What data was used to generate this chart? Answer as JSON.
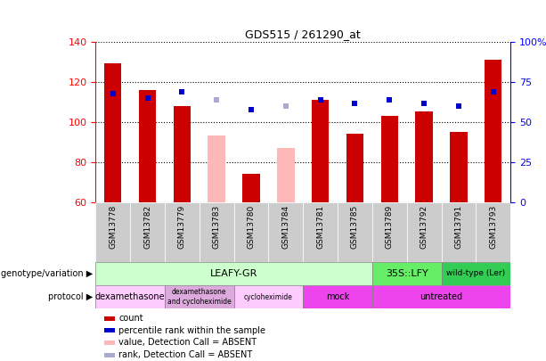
{
  "title": "GDS515 / 261290_at",
  "samples": [
    "GSM13778",
    "GSM13782",
    "GSM13779",
    "GSM13783",
    "GSM13780",
    "GSM13784",
    "GSM13781",
    "GSM13785",
    "GSM13789",
    "GSM13792",
    "GSM13791",
    "GSM13793"
  ],
  "count_values": [
    129,
    116,
    108,
    93,
    74,
    87,
    111,
    94,
    103,
    105,
    95,
    131
  ],
  "count_absent": [
    false,
    false,
    false,
    true,
    false,
    true,
    false,
    false,
    false,
    false,
    false,
    false
  ],
  "rank_values": [
    114,
    112,
    115,
    111,
    106,
    108,
    111,
    109,
    111,
    109,
    108,
    115
  ],
  "rank_absent_flags": [
    false,
    false,
    false,
    true,
    false,
    true,
    false,
    false,
    false,
    false,
    false,
    false
  ],
  "ylim_left": [
    60,
    140
  ],
  "ylim_right": [
    0,
    100
  ],
  "yticks_left": [
    60,
    80,
    100,
    120,
    140
  ],
  "yticks_right": [
    0,
    25,
    50,
    75,
    100
  ],
  "ytick_right_labels": [
    "0",
    "25",
    "50",
    "75",
    "100%"
  ],
  "bar_color_normal": "#cc0000",
  "bar_color_absent": "#ffb8b8",
  "rank_color_normal": "#0000cc",
  "rank_color_absent": "#aaaacc",
  "bg_color": "#ffffff",
  "grid_color": "#000000",
  "genotype_row": [
    {
      "label": "LEAFY-GR",
      "start": 0,
      "end": 8,
      "color": "#ccffcc"
    },
    {
      "label": "35S::LFY",
      "start": 8,
      "end": 10,
      "color": "#66ee66"
    },
    {
      "label": "wild-type (Ler)",
      "start": 10,
      "end": 12,
      "color": "#33cc55"
    }
  ],
  "protocol_row": [
    {
      "label": "dexamethasone",
      "start": 0,
      "end": 2,
      "color": "#ffccff"
    },
    {
      "label": "dexamethasone\nand cycloheximide",
      "start": 2,
      "end": 4,
      "color": "#ddaadd"
    },
    {
      "label": "cycloheximide",
      "start": 4,
      "end": 6,
      "color": "#ffccff"
    },
    {
      "label": "mock",
      "start": 6,
      "end": 8,
      "color": "#ee44ee"
    },
    {
      "label": "untreated",
      "start": 8,
      "end": 12,
      "color": "#ee44ee"
    }
  ],
  "legend_items": [
    {
      "label": "count",
      "color": "#cc0000"
    },
    {
      "label": "percentile rank within the sample",
      "color": "#0000cc"
    },
    {
      "label": "value, Detection Call = ABSENT",
      "color": "#ffb8b8"
    },
    {
      "label": "rank, Detection Call = ABSENT",
      "color": "#aaaacc"
    }
  ]
}
